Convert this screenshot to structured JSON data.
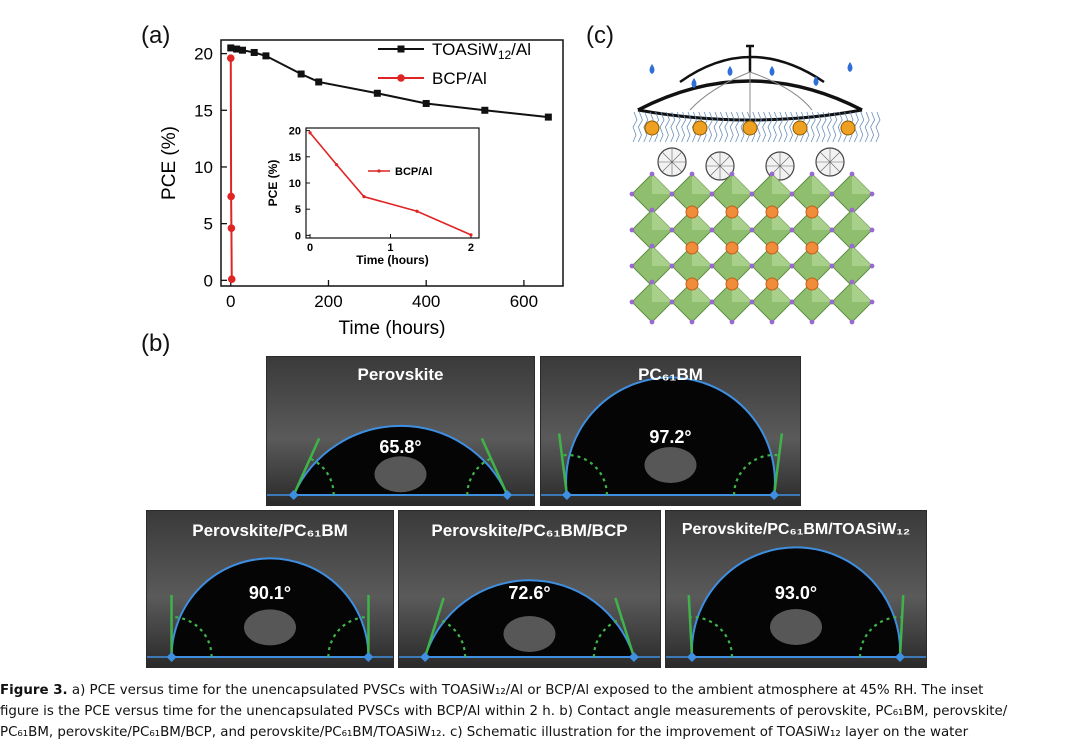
{
  "figure": {
    "panel_labels": [
      "(a)",
      "(b)",
      "(c)"
    ],
    "caption": {
      "label": "Figure 3.",
      "line1": "a) PCE versus time for the unencapsulated PVSCs with TOASiW₁₂/Al or BCP/Al exposed to the ambient atmosphere at 45% RH. The inset",
      "line2": "figure is the PCE versus time for the unencapsulated PVSCs with BCP/Al within 2 h. b) Contact angle measurements of perovskite, PC₆₁BM, perovskite/",
      "line3": "PC₆₁BM, perovskite/PC₆₁BM/BCP, and perovskite/PC₆₁BM/TOASiW₁₂. c) Schematic illustration for the improvement of TOASiW₁₂ layer on the water"
    }
  },
  "chart_data": [
    {
      "type": "line",
      "name": "main",
      "xlabel": "Time (hours)",
      "ylabel": "PCE (%)",
      "xlim": [
        -20,
        680
      ],
      "ylim": [
        -0.5,
        21.2
      ],
      "xticks": [
        0,
        200,
        400,
        600
      ],
      "yticks": [
        0,
        5,
        10,
        15,
        20
      ],
      "series": [
        {
          "name": "TOASiW₁₂/Al",
          "color": "#111111",
          "marker": "square",
          "x": [
            0,
            12,
            24,
            48,
            72,
            144,
            180,
            300,
            400,
            520,
            650
          ],
          "y": [
            20.5,
            20.4,
            20.3,
            20.1,
            19.8,
            18.2,
            17.5,
            16.5,
            15.6,
            15.0,
            14.4
          ]
        },
        {
          "name": "BCP/Al",
          "color": "#e02424",
          "marker": "circle",
          "x": [
            0,
            0.7,
            1.3,
            2
          ],
          "y": [
            19.6,
            7.4,
            4.6,
            0.1
          ]
        }
      ],
      "legend": "top-right"
    },
    {
      "type": "line",
      "name": "inset",
      "xlabel": "Time (hours)",
      "ylabel": "PCE (%)",
      "xlim": [
        -0.05,
        2.1
      ],
      "ylim": [
        -0.5,
        20.5
      ],
      "xticks": [
        0,
        1,
        2
      ],
      "yticks": [
        0,
        5,
        10,
        15,
        20
      ],
      "series": [
        {
          "name": "BCP/Al",
          "color": "#e02424",
          "marker": "dot",
          "x": [
            0,
            0.33,
            0.67,
            1.33,
            2.0
          ],
          "y": [
            19.6,
            13.5,
            7.4,
            4.6,
            0.1
          ]
        }
      ],
      "legend": "center"
    }
  ],
  "contact_angles": [
    {
      "title": "Perovskite",
      "angle": "65.8°",
      "value": 65.8
    },
    {
      "title": "PC₆₁BM",
      "angle": "97.2°",
      "value": 97.2
    },
    {
      "title": "Perovskite/PC₆₁BM",
      "angle": "90.1°",
      "value": 90.1
    },
    {
      "title": "Perovskite/PC₆₁BM/BCP",
      "angle": "72.6°",
      "value": 72.6
    },
    {
      "title": "Perovskite/PC₆₁BM/TOASiW₁₂",
      "angle": "93.0°",
      "value": 93.0
    }
  ],
  "colors": {
    "black_series": "#111111",
    "red_series": "#e02424",
    "drop_outline": "#3f8fe0",
    "tangent": "#3fb34a",
    "octahedron": "#8fbf6e",
    "cation": "#f08c3a"
  }
}
